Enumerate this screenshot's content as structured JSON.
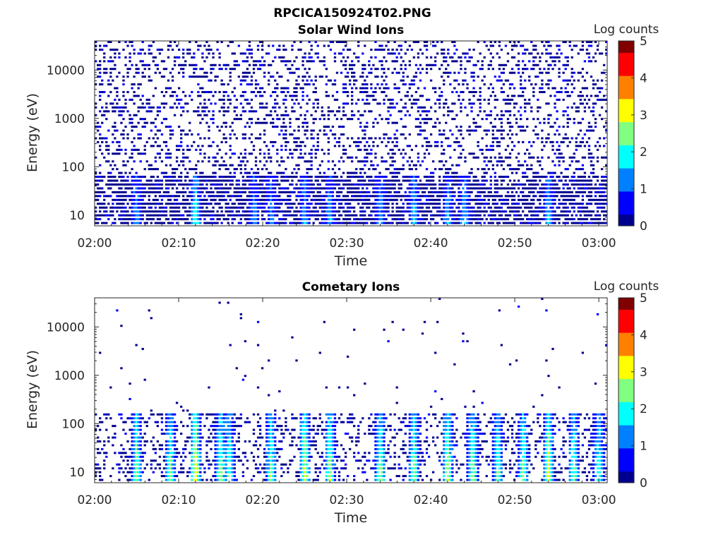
{
  "figure_title": "RPCICA150924T02.PNG",
  "colormap": [
    "#00008f",
    "#0000ff",
    "#0080ff",
    "#00ffff",
    "#80ff80",
    "#ffff00",
    "#ff8000",
    "#ff0000",
    "#800000"
  ],
  "chart_data": [
    {
      "type": "heatmap",
      "title": "Solar Wind Ions",
      "xlabel": "Time",
      "ylabel": "Energy (eV)",
      "x_range": [
        "02:00",
        "03:01"
      ],
      "x_ticks": [
        "02:00",
        "02:10",
        "02:20",
        "02:30",
        "02:40",
        "02:50",
        "03:00"
      ],
      "y_scale": "log",
      "y_range": [
        6,
        40000
      ],
      "y_ticks": [
        10,
        100,
        1000,
        10000
      ],
      "y_tick_labels": [
        "10",
        "100",
        "1000",
        "10000"
      ],
      "colorbar": {
        "label": "Log counts",
        "range": [
          0,
          5
        ],
        "ticks": [
          "0",
          "1",
          "2",
          "3",
          "4",
          "5"
        ]
      },
      "features": {
        "background_level": 0,
        "background_density": 0.32,
        "low_energy_band_eV": [
          6,
          60
        ],
        "low_energy_density": 0.75,
        "bursts": [
          {
            "t": "02:05",
            "level": 1.5
          },
          {
            "t": "02:12",
            "level": 2.2
          },
          {
            "t": "02:19",
            "level": 1.4
          },
          {
            "t": "02:21",
            "level": 1.3
          },
          {
            "t": "02:25",
            "level": 1.6
          },
          {
            "t": "02:28",
            "level": 1.5
          },
          {
            "t": "02:34",
            "level": 1.5
          },
          {
            "t": "02:38",
            "level": 1.7
          },
          {
            "t": "02:42",
            "level": 1.6
          },
          {
            "t": "02:44",
            "level": 1.6
          },
          {
            "t": "02:54",
            "level": 1.8
          }
        ]
      }
    },
    {
      "type": "heatmap",
      "title": "Cometary Ions",
      "xlabel": "Time",
      "ylabel": "Energy (eV)",
      "x_range": [
        "02:00",
        "03:01"
      ],
      "x_ticks": [
        "02:00",
        "02:10",
        "02:20",
        "02:30",
        "02:40",
        "02:50",
        "03:00"
      ],
      "y_scale": "log",
      "y_range": [
        6,
        40000
      ],
      "y_ticks": [
        10,
        100,
        1000,
        10000
      ],
      "y_tick_labels": [
        "10",
        "100",
        "1000",
        "10000"
      ],
      "colorbar": {
        "label": "Log counts",
        "range": [
          0,
          5
        ],
        "ticks": [
          "0",
          "1",
          "2",
          "3",
          "4",
          "5"
        ]
      },
      "features": {
        "background_level": 0,
        "background_density": 0.012,
        "low_energy_band_eV": [
          6,
          150
        ],
        "low_energy_density": 0.28,
        "bursts": [
          {
            "t": "02:05",
            "level": 2.6
          },
          {
            "t": "02:09",
            "level": 2.5
          },
          {
            "t": "02:12",
            "level": 3.4
          },
          {
            "t": "02:15",
            "level": 2.7
          },
          {
            "t": "02:16",
            "level": 2.4
          },
          {
            "t": "02:21",
            "level": 2.6
          },
          {
            "t": "02:25",
            "level": 3.0
          },
          {
            "t": "02:28",
            "level": 2.8
          },
          {
            "t": "02:34",
            "level": 2.7
          },
          {
            "t": "02:38",
            "level": 2.6
          },
          {
            "t": "02:42",
            "level": 2.9
          },
          {
            "t": "02:45",
            "level": 2.8
          },
          {
            "t": "02:48",
            "level": 2.4
          },
          {
            "t": "02:51",
            "level": 2.6
          },
          {
            "t": "02:54",
            "level": 3.1
          },
          {
            "t": "02:57",
            "level": 2.5
          },
          {
            "t": "03:00",
            "level": 2.3
          }
        ]
      }
    }
  ]
}
